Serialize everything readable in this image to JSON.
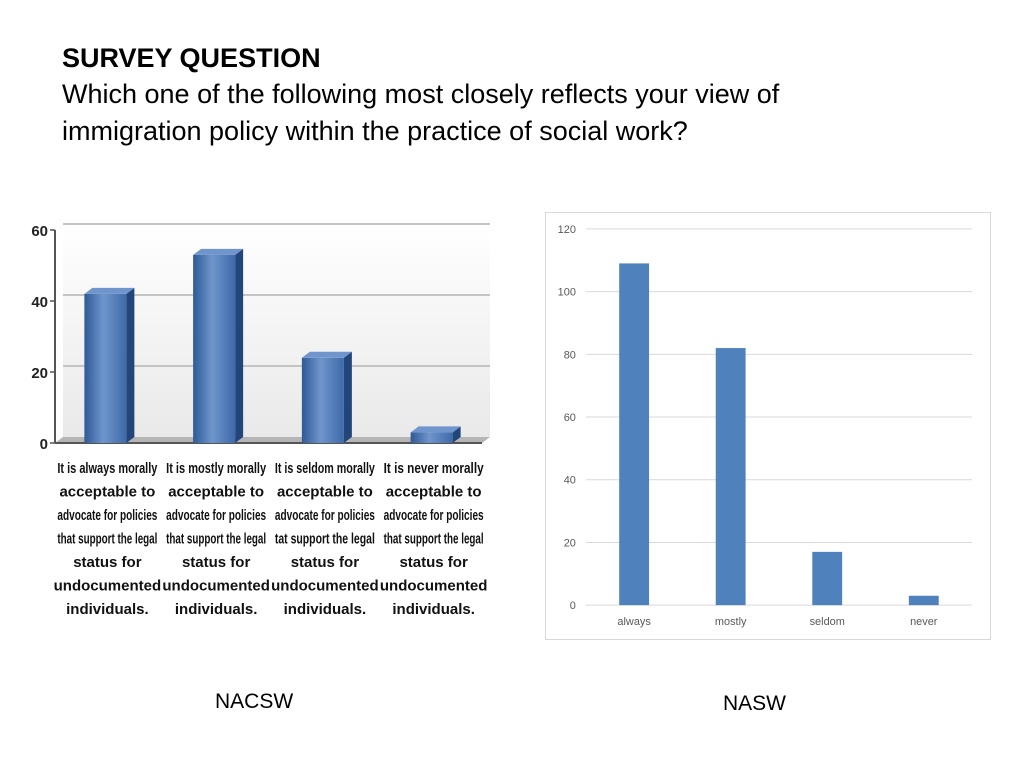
{
  "header": {
    "label": "SURVEY QUESTION",
    "question_line1": "Which one of the following most closely reflects your view of",
    "question_line2": "immigration policy within the practice of social work?"
  },
  "chart_data": [
    {
      "type": "bar",
      "style": "3d",
      "caption": "NACSW",
      "categories": [
        "It is always morally acceptable to advocate for policies that support the legal status for undocumented individuals.",
        "It is mostly morally acceptable to advocate for policies that support the legal status for undocumented individuals.",
        "It is seldom morally acceptable to advocate for policies tat support the legal status for undocumented individuals.",
        "It is never morally acceptable to advocate for policies that support the legal status for undocumented individuals."
      ],
      "category_lines": [
        [
          "It is always morally",
          "acceptable to",
          "advocate for policies",
          "that support the legal",
          "status for",
          "undocumented",
          "individuals."
        ],
        [
          "It is mostly morally",
          "acceptable to",
          "advocate for policies",
          "that support the legal",
          "status for",
          "undocumented",
          "individuals."
        ],
        [
          "It is seldom morally",
          "acceptable to",
          "advocate for policies",
          "tat support the legal",
          "status for",
          "undocumented",
          "individuals."
        ],
        [
          "It is never morally",
          "acceptable to",
          "advocate for policies",
          "that support the legal",
          "status for",
          "undocumented",
          "individuals."
        ]
      ],
      "values": [
        42,
        53,
        24,
        3
      ],
      "ylim": [
        0,
        60
      ],
      "yticks": [
        0,
        20,
        40,
        60
      ],
      "grid": true,
      "colors": {
        "bar": "#3e6aa8",
        "bar_top": "#6f95cc",
        "bar_side": "#23467a"
      }
    },
    {
      "type": "bar",
      "caption": "NASW",
      "categories": [
        "always",
        "mostly",
        "seldom",
        "never"
      ],
      "values": [
        109,
        82,
        17,
        3
      ],
      "ylim": [
        0,
        120
      ],
      "yticks": [
        0,
        20,
        40,
        60,
        80,
        100,
        120
      ],
      "grid": true,
      "colors": {
        "bar": "#4f81bd",
        "grid": "#d9d9d9"
      }
    }
  ]
}
